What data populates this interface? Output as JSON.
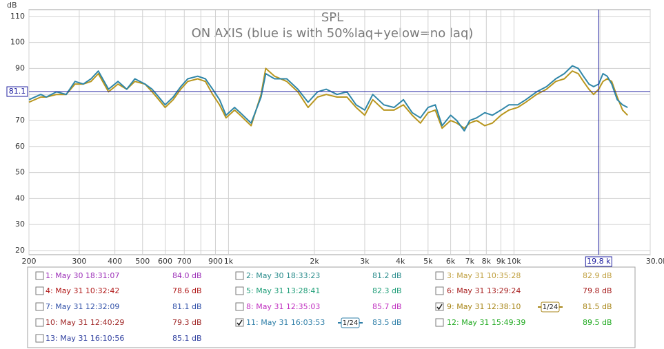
{
  "chart_data": {
    "type": "line",
    "title": "SPL",
    "subtitle": "ON AXIS (blue is with 50%laq+yelow=no laq)",
    "y_label": "dB",
    "xscale": "log",
    "grid": true,
    "xlim": [
      200,
      30000
    ],
    "ylim": [
      18.4,
      112.6
    ],
    "yticks": [
      20,
      30,
      40,
      50,
      60,
      70,
      80,
      90,
      100,
      110
    ],
    "xticks": [
      200,
      300,
      400,
      500,
      600,
      700,
      900,
      {
        "value": 1000,
        "label": "1k"
      },
      {
        "value": 2000,
        "label": "2k"
      },
      {
        "value": 3000,
        "label": "3k"
      },
      {
        "value": 4000,
        "label": "4k"
      },
      {
        "value": 5000,
        "label": "5k"
      },
      {
        "value": 6000,
        "label": "6k"
      },
      {
        "value": 7000,
        "label": "7k"
      },
      {
        "value": 8000,
        "label": "8k"
      },
      {
        "value": 9000,
        "label": "9k"
      },
      {
        "value": 10000,
        "label": "10k"
      },
      {
        "value": 30000,
        "label": "30.0k Hz"
      }
    ],
    "minor_xticks": [
      800,
      20000
    ],
    "cursor": {
      "x": 19800,
      "x_label": "19.8 k",
      "y": 81.1,
      "y_label": "81.1"
    },
    "x": [
      200,
      220,
      230,
      250,
      270,
      290,
      310,
      330,
      350,
      380,
      410,
      440,
      470,
      510,
      540,
      570,
      600,
      640,
      680,
      720,
      780,
      830,
      880,
      930,
      980,
      1050,
      1100,
      1200,
      1300,
      1350,
      1450,
      1600,
      1750,
      1900,
      2050,
      2200,
      2400,
      2600,
      2800,
      3000,
      3200,
      3500,
      3800,
      4100,
      4400,
      4700,
      5000,
      5300,
      5600,
      6000,
      6300,
      6700,
      7000,
      7400,
      7900,
      8400,
      9000,
      9600,
      10300,
      11000,
      12000,
      13000,
      14000,
      15000,
      16000,
      16800,
      17500,
      18300,
      19000,
      19800,
      20500,
      21200,
      22000,
      23000,
      24000,
      25000
    ],
    "series": [
      {
        "color": "#b8961e",
        "values": [
          77,
          79,
          79,
          80,
          80,
          84,
          84,
          85,
          88,
          81,
          84,
          82,
          85,
          84,
          81,
          78,
          75,
          78,
          82,
          85,
          86,
          85,
          80,
          76,
          71,
          74,
          72,
          68,
          80,
          90,
          87,
          85,
          81,
          75,
          79,
          80,
          79,
          79,
          75,
          72,
          78,
          74,
          74,
          76,
          72,
          69,
          73,
          74,
          67,
          70,
          69,
          67,
          69,
          70,
          68,
          69,
          72,
          74,
          75,
          77,
          80,
          82,
          85,
          86,
          89,
          88,
          85,
          82,
          80,
          82,
          85,
          86,
          85,
          79,
          74,
          72
        ]
      },
      {
        "color": "#2f86a8",
        "values": [
          78,
          80,
          79,
          81,
          80,
          85,
          84,
          86,
          89,
          82,
          85,
          82,
          86,
          84,
          82,
          79,
          76,
          79,
          83,
          86,
          87,
          86,
          82,
          78,
          72,
          75,
          73,
          69,
          79,
          88,
          86,
          86,
          82,
          77,
          81,
          82,
          80,
          81,
          76,
          74,
          80,
          76,
          75,
          78,
          73,
          71,
          75,
          76,
          68,
          72,
          70,
          66,
          70,
          71,
          73,
          72,
          74,
          76,
          76,
          78,
          81,
          83,
          86,
          88,
          91,
          90,
          87,
          84,
          83,
          84,
          88,
          87,
          84,
          78,
          76,
          75
        ]
      }
    ],
    "measurements": [
      {
        "label": "1: May 30 18:31:07",
        "level": "84.0 dB",
        "color": "#9c2fb8",
        "checked": false
      },
      {
        "label": "2: May 30 18:33:23",
        "level": "81.2 dB",
        "color": "#2a8c8c",
        "checked": false
      },
      {
        "label": "3: May 31 10:35:28",
        "level": "82.9 dB",
        "color": "#c0a040",
        "checked": false
      },
      {
        "label": "4: May 31 10:32:42",
        "level": "78.6 dB",
        "color": "#b01818",
        "checked": false
      },
      {
        "label": "5: May 31 13:28:41",
        "level": "82.3 dB",
        "color": "#1f9e78",
        "checked": false
      },
      {
        "label": "6: May 31 13:29:24",
        "level": "79.8 dB",
        "color": "#a82020",
        "checked": false
      },
      {
        "label": "7: May 31 12:32:09",
        "level": "81.1 dB",
        "color": "#3050a8",
        "checked": false
      },
      {
        "label": "8: May 31 12:35:03",
        "level": "85.7 dB",
        "color": "#c030c0",
        "checked": false
      },
      {
        "label": "9: May 31 12:38:10",
        "level": "81.5 dB",
        "color": "#a88618",
        "checked": true,
        "smoothing": "1/24"
      },
      {
        "label": "10: May 31 12:40:29",
        "level": "79.3 dB",
        "color": "#a02828",
        "checked": false
      },
      {
        "label": "11: May 31 16:03:53",
        "level": "83.5 dB",
        "color": "#2f7fa8",
        "checked": true,
        "smoothing": "1/24"
      },
      {
        "label": "12: May 31 15:49:39",
        "level": "89.5 dB",
        "color": "#22aa22",
        "checked": false
      },
      {
        "label": "13: May 31 16:10:56",
        "level": "85.1 dB",
        "color": "#3040a0",
        "checked": false
      }
    ]
  }
}
